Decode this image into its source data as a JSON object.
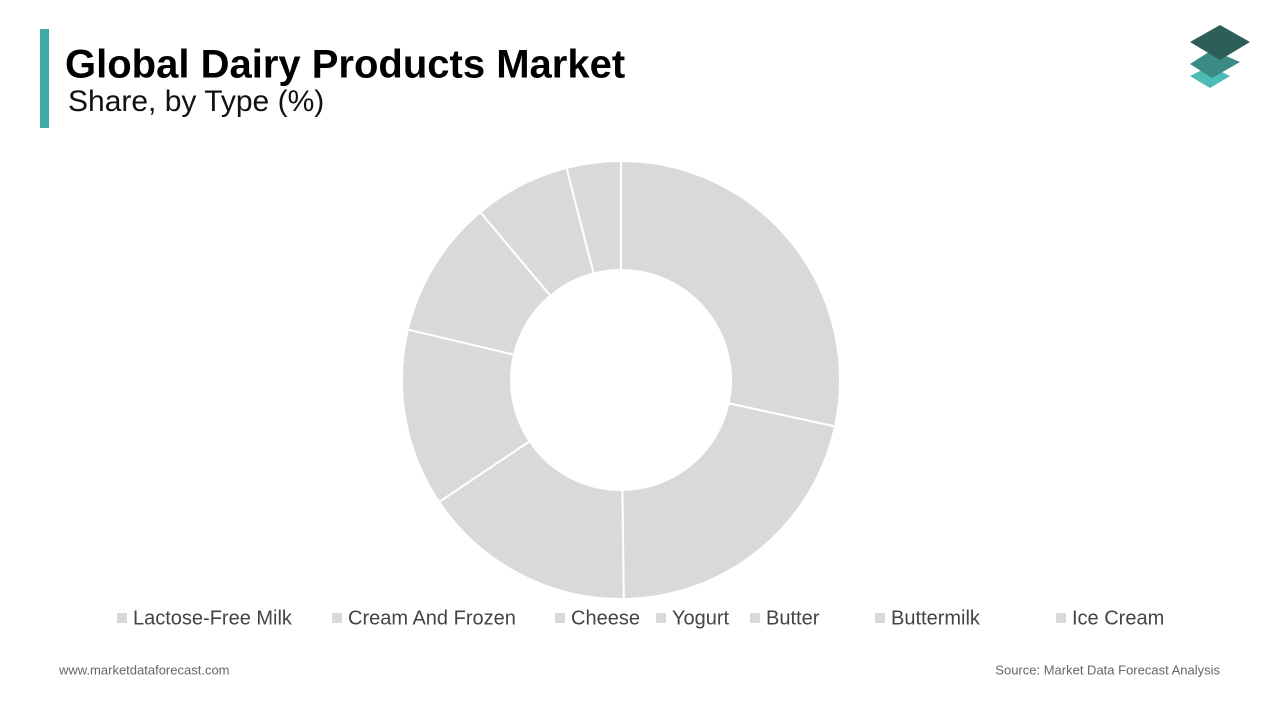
{
  "chart_data": {
    "type": "donut",
    "title": "Global Dairy Products Market",
    "subtitle": "Share, by Type (%)",
    "categories": [
      "Lactose-Free Milk",
      "Cream And Frozen",
      "Cheese",
      "Yogurt",
      "Butter",
      "Buttermilk",
      "Ice Cream"
    ],
    "values": [
      28.4,
      21.4,
      15.8,
      13.1,
      10.2,
      7.1,
      4.0
    ],
    "color": "#d9d9d9"
  },
  "footer": {
    "website": "www.marketdataforecast.com",
    "source": "Source: Market Data Forecast Analysis"
  }
}
